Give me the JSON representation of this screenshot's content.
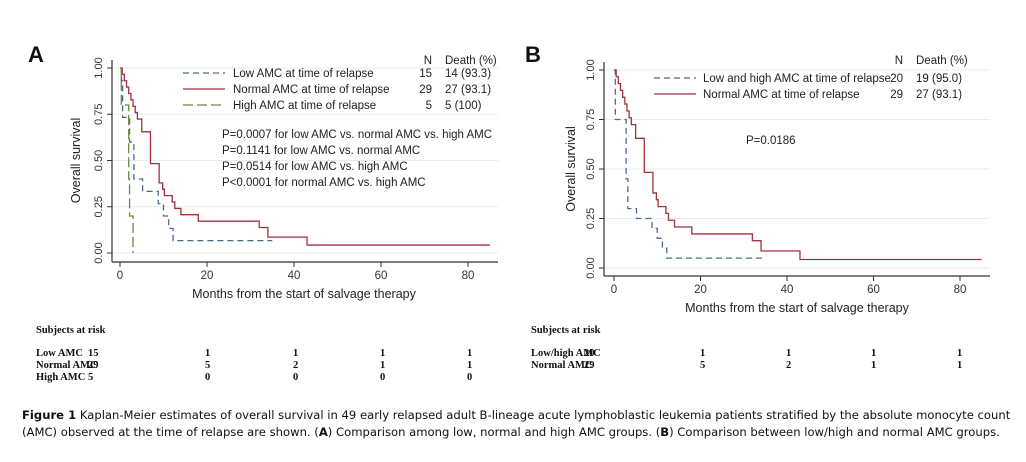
{
  "caption": {
    "figure_label": "Figure 1",
    "text_part1": " Kaplan-Meier estimates of overall survival in 49 early relapsed adult B-lineage acute lymphoblastic leukemia patients stratified by the absolute monocyte count (AMC) observed at the time of relapse are shown. (",
    "label_a": "A",
    "text_part2": ") Comparison among low, normal and high AMC groups. (",
    "label_b": "B",
    "text_part3": ") Comparison between low/high and normal AMC groups."
  },
  "chart_data": [
    {
      "type": "line",
      "panel": "A",
      "title": "",
      "xlabel": "Months from the start of salvage therapy",
      "ylabel": "Overall survival",
      "xlim": [
        0,
        85
      ],
      "ylim": [
        0,
        1
      ],
      "xticks": [
        "0",
        "20",
        "40",
        "60",
        "80"
      ],
      "xtick_values": [
        0,
        20,
        40,
        60,
        80
      ],
      "yticks": [
        "0.00",
        "0.25",
        "0.50",
        "0.75",
        "1.00"
      ],
      "ytick_values": [
        0,
        0.25,
        0.5,
        0.75,
        1
      ],
      "grid": true,
      "legend_header": "N  Death (%)",
      "legend_position": "top-right",
      "series": [
        {
          "name": "Low AMC at time of relapse",
          "n": "15",
          "death": "14 (93.3)",
          "color": "#4a6a8a",
          "dash": "6,4",
          "x": [
            0,
            0.3,
            0.6,
            2.2,
            3.2,
            5.2,
            8.8,
            10.0,
            11.2,
            12.2,
            35
          ],
          "y": [
            1.0,
            0.933,
            0.733,
            0.6,
            0.4,
            0.333,
            0.267,
            0.2,
            0.133,
            0.067,
            0.067
          ]
        },
        {
          "name": "Normal AMC at time of relapse",
          "n": "29",
          "death": "27 (93.1)",
          "color": "#a0323c",
          "dash": "",
          "x": [
            0,
            0.5,
            1.0,
            1.5,
            2.0,
            2.5,
            3.0,
            3.5,
            4.0,
            5.0,
            7.0,
            9.0,
            9.8,
            10.2,
            12.0,
            12.6,
            14.0,
            18.0,
            32.0,
            34.0,
            43.0,
            85
          ],
          "y": [
            1.0,
            0.966,
            0.931,
            0.897,
            0.862,
            0.828,
            0.793,
            0.759,
            0.724,
            0.655,
            0.483,
            0.379,
            0.345,
            0.31,
            0.276,
            0.241,
            0.207,
            0.172,
            0.138,
            0.086,
            0.043,
            0.043
          ]
        },
        {
          "name": "High AMC at time of relapse",
          "n": "5",
          "death": "5 (100)",
          "color": "#6a8a3a",
          "dash": "10,4",
          "x": [
            0,
            0.3,
            2.0,
            2.2,
            3.0
          ],
          "y": [
            1.0,
            0.8,
            0.4,
            0.2,
            0.0
          ]
        }
      ],
      "annotations": [
        "P=0.0007 for low AMC vs. normal AMC vs. high AMC",
        "P=0.1141 for low AMC vs. normal AMC",
        "P=0.0514 for low AMC vs. high AMC",
        "P<0.0001 for normal AMC vs. high AMC"
      ],
      "risk_table": {
        "title": "Subjects at risk",
        "rows": [
          {
            "label": "Low AMC",
            "values": [
              "15",
              "1",
              "1",
              "1",
              "1"
            ]
          },
          {
            "label": "Normal AMC",
            "values": [
              "29",
              "5",
              "2",
              "1",
              "1"
            ]
          },
          {
            "label": "High AMC",
            "values": [
              "5",
              "0",
              "0",
              "0",
              "0"
            ]
          }
        ]
      }
    },
    {
      "type": "line",
      "panel": "B",
      "title": "",
      "xlabel": "Months from the start of salvage therapy",
      "ylabel": "Overall survival",
      "xlim": [
        0,
        85
      ],
      "ylim": [
        0,
        1
      ],
      "xticks": [
        "0",
        "20",
        "40",
        "60",
        "80"
      ],
      "xtick_values": [
        0,
        20,
        40,
        60,
        80
      ],
      "yticks": [
        "0.00",
        "0.25",
        "0.50",
        "0.75",
        "1.00"
      ],
      "ytick_values": [
        0,
        0.25,
        0.5,
        0.75,
        1
      ],
      "grid": true,
      "legend_header": "N  Death (%)",
      "legend_position": "top-right",
      "series": [
        {
          "name": "Low and high AMC at time of relapse",
          "n": "20",
          "death": "19 (95.0)",
          "color": "#4a6a8a",
          "dash": "6,4",
          "x": [
            0,
            0.3,
            1.5,
            2.8,
            3.2,
            5.2,
            8.8,
            10.0,
            11.2,
            12.2,
            35
          ],
          "y": [
            1.0,
            0.75,
            0.75,
            0.45,
            0.3,
            0.25,
            0.2,
            0.15,
            0.1,
            0.05,
            0.05
          ]
        },
        {
          "name": "Normal AMC at time of relapse",
          "n": "29",
          "death": "27 (93.1)",
          "color": "#a0323c",
          "dash": "",
          "x": [
            0,
            0.5,
            1.0,
            1.5,
            2.0,
            2.5,
            3.0,
            3.5,
            4.0,
            5.0,
            7.0,
            9.0,
            9.8,
            10.2,
            12.0,
            12.6,
            14.0,
            18.0,
            32.0,
            34.0,
            43.0,
            85
          ],
          "y": [
            1.0,
            0.966,
            0.931,
            0.897,
            0.862,
            0.828,
            0.793,
            0.759,
            0.724,
            0.655,
            0.483,
            0.379,
            0.345,
            0.31,
            0.276,
            0.241,
            0.207,
            0.172,
            0.138,
            0.086,
            0.043,
            0.043
          ]
        }
      ],
      "annotations": [
        "P=0.0186"
      ],
      "risk_table": {
        "title": "Subjects at risk",
        "rows": [
          {
            "label": "Low/high AMC",
            "values": [
              "20",
              "1",
              "1",
              "1",
              "1"
            ]
          },
          {
            "label": "Normal AMC",
            "values": [
              "29",
              "5",
              "2",
              "1",
              "1"
            ]
          }
        ]
      }
    }
  ]
}
